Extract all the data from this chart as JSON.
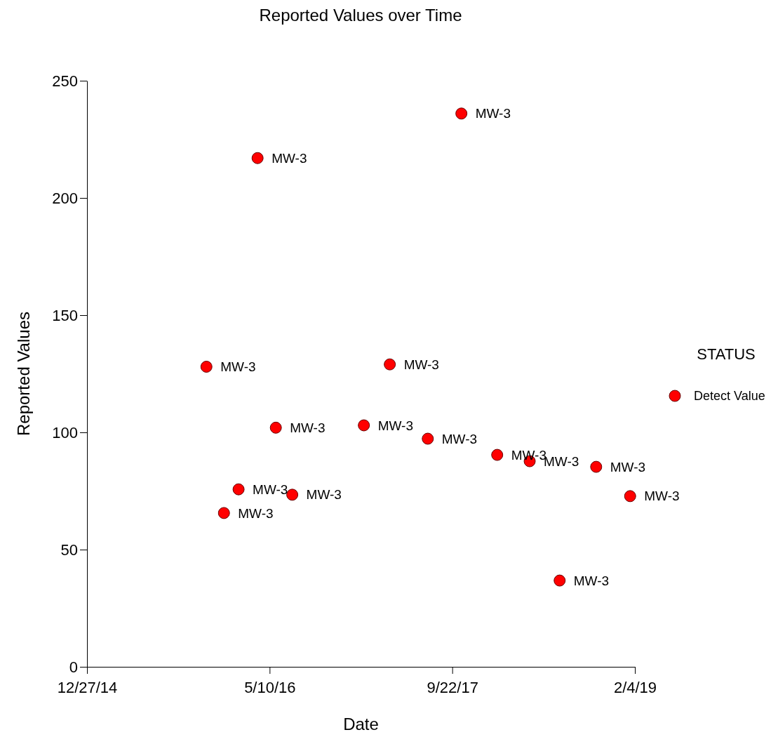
{
  "chart_data": {
    "type": "scatter",
    "title": "Reported Values over Time",
    "xlabel": "Date",
    "ylabel": "Reported Values",
    "legend_title": "STATUS",
    "xlim": [
      "2014-12-27",
      "2019-02-04"
    ],
    "xticks": [
      {
        "value": "2014-12-27",
        "label": "12/27/14"
      },
      {
        "value": "2016-05-10",
        "label": "5/10/16"
      },
      {
        "value": "2017-09-22",
        "label": "9/22/17"
      },
      {
        "value": "2019-02-04",
        "label": "2/4/19"
      }
    ],
    "ylim": [
      0,
      250
    ],
    "yticks": [
      0,
      50,
      100,
      150,
      200,
      250
    ],
    "grid": false,
    "legend": "right",
    "marker": "circle",
    "series": [
      {
        "name": "Detect Value",
        "color": "#ff0000",
        "x": [
          "2015-11-19",
          "2016-01-06",
          "2016-02-15",
          "2016-04-07",
          "2016-05-27",
          "2016-07-11",
          "2017-01-23",
          "2017-04-04",
          "2017-07-17",
          "2017-10-17",
          "2018-01-23",
          "2018-04-22",
          "2018-07-13",
          "2018-10-21",
          "2019-01-22"
        ],
        "values": [
          128,
          65.6,
          75.7,
          217,
          102,
          73.4,
          103,
          129,
          97.3,
          236,
          90.4,
          87.7,
          36.8,
          85.3,
          72.8
        ]
      }
    ],
    "annotations": [
      {
        "text": "MW-3",
        "x": "2015-11-19",
        "y": 128
      },
      {
        "text": "MW-3",
        "x": "2016-01-06",
        "y": 65.6
      },
      {
        "text": "MW-3",
        "x": "2016-02-15",
        "y": 75.7
      },
      {
        "text": "MW-3",
        "x": "2016-04-07",
        "y": 217
      },
      {
        "text": "MW-3",
        "x": "2016-05-27",
        "y": 102
      },
      {
        "text": "MW-3",
        "x": "2016-07-11",
        "y": 73.4
      },
      {
        "text": "MW-3",
        "x": "2017-01-23",
        "y": 103
      },
      {
        "text": "MW-3",
        "x": "2017-04-04",
        "y": 129
      },
      {
        "text": "MW-3",
        "x": "2017-07-17",
        "y": 97.3
      },
      {
        "text": "MW-3",
        "x": "2017-10-17",
        "y": 236
      },
      {
        "text": "MW-3",
        "x": "2018-01-23",
        "y": 90.4
      },
      {
        "text": "MW-3",
        "x": "2018-04-22",
        "y": 87.7
      },
      {
        "text": "MW-3",
        "x": "2018-07-13",
        "y": 36.8
      },
      {
        "text": "MW-3",
        "x": "2018-10-21",
        "y": 85.3
      },
      {
        "text": "MW-3",
        "x": "2019-01-22",
        "y": 72.8
      }
    ]
  }
}
